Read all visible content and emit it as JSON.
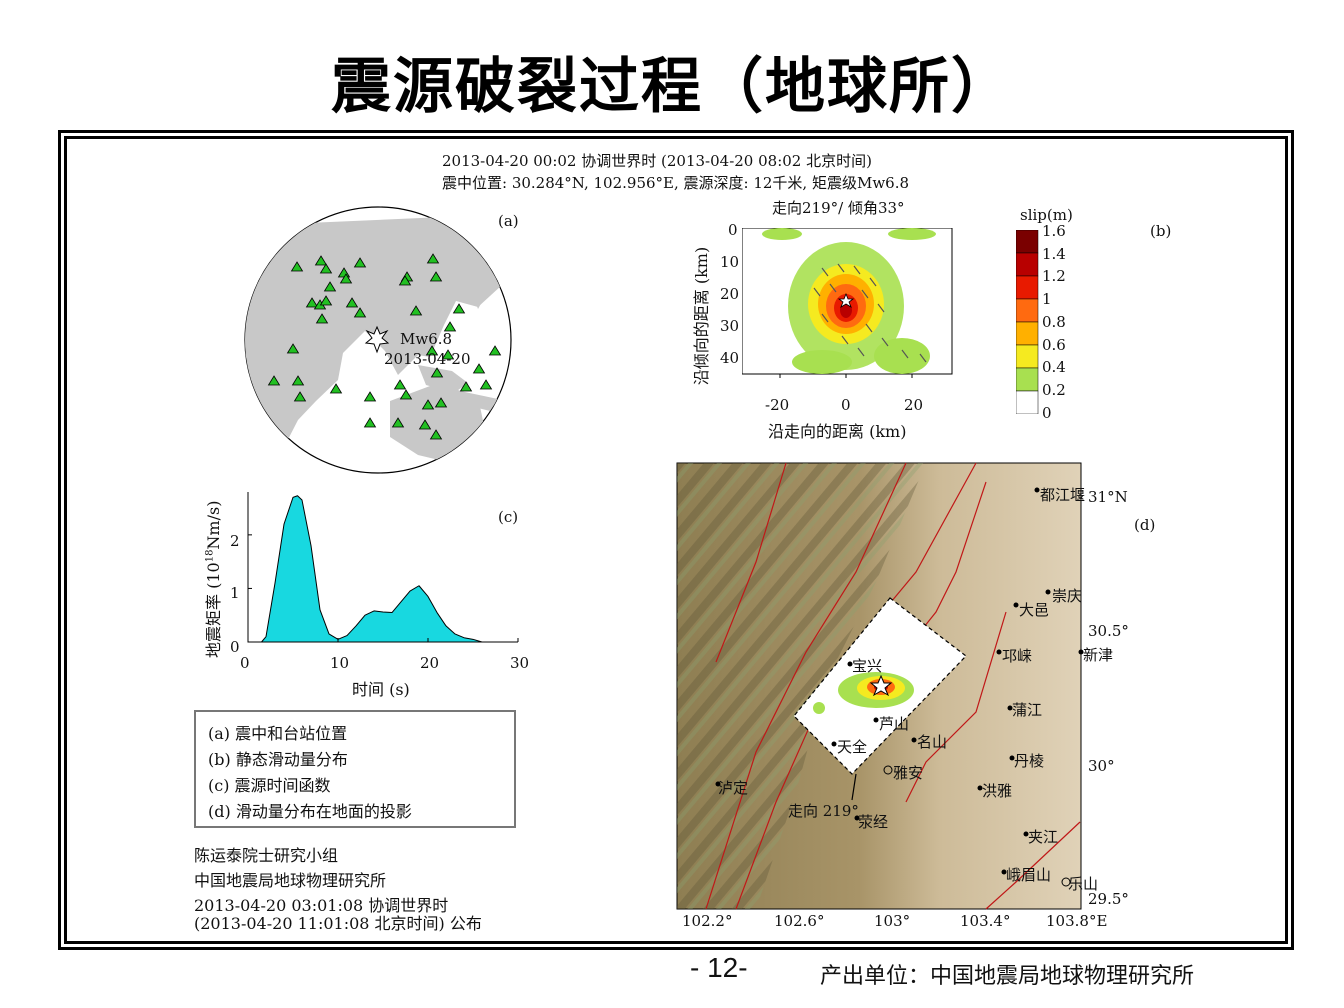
{
  "slide": {
    "title": "震源破裂过程（地球所）",
    "page_number": "- 12-",
    "producer": "产出单位：中国地震局地球物理研究所"
  },
  "figure": {
    "header_line1": "2013-04-20 00:02 协调世界时 (2013-04-20 08:02 北京时间)",
    "header_line2": "震中位置: 30.284°N, 102.956°E, 震源深度: 12千米, 矩震级Mw6.8",
    "panel_a": {
      "label": "(a)",
      "event_mag": "Mw6.8",
      "event_date": "2013-04-20",
      "colors": {
        "land": "#c8c8c8",
        "ocean": "#ffffff",
        "station": "#22c022"
      }
    },
    "panel_b": {
      "label": "(b)",
      "subtitle": "走向219°/ 倾角33°",
      "xlabel": "沿走向的距离 (km)",
      "ylabel": "沿倾向的距离 (km)",
      "xticks": [
        "-20",
        "0",
        "20"
      ],
      "yticks": [
        "0",
        "10",
        "20",
        "30",
        "40"
      ],
      "colorbar_title": "slip(m)",
      "colorbar_ticks": [
        "1.6",
        "1.4",
        "1.2",
        "1",
        "0.8",
        "0.6",
        "0.4",
        "0.2",
        "0"
      ],
      "colorbar_colors": [
        "#7a0000",
        "#b80000",
        "#e81a00",
        "#ff6a10",
        "#ffb000",
        "#f5ea20",
        "#a8e050",
        "#6cd870",
        "#ffffff"
      ]
    },
    "panel_c": {
      "label": "(c)",
      "ylabel": "地震矩率 (10",
      "ylabel_sup": "18",
      "ylabel_tail": "Nm/s)",
      "xlabel": "时间 (s)",
      "xticks": [
        "0",
        "10",
        "20",
        "30"
      ],
      "yticks": [
        "0",
        "1",
        "2"
      ],
      "fill_color": "#18d8e0"
    },
    "panel_d": {
      "label": "(d)",
      "cities": [
        "都江堰",
        "崇庆",
        "大邑",
        "邛崃",
        "新津",
        "宝兴",
        "芦山",
        "名山",
        "天全",
        "雅安",
        "蒲江",
        "丹棱",
        "洪雅",
        "泸定",
        "荥经",
        "夹江",
        "峨眉山",
        "乐山"
      ],
      "lat_labels": [
        "31°N",
        "30.5°",
        "30°",
        "29.5°"
      ],
      "lon_labels": [
        "102.2°",
        "102.6°",
        "103°",
        "103.4°",
        "103.8°E"
      ],
      "strike_label": "走向 219°"
    },
    "legend": [
      "(a) 震中和台站位置",
      "(b) 静态滑动量分布",
      "(c) 震源时间函数",
      "(d) 滑动量分布在地面的投影"
    ],
    "credit": [
      "陈运泰院士研究小组",
      "中国地震局地球物理研究所",
      "2013-04-20 03:01:08 协调世界时",
      "(2013-04-20 11:01:08 北京时间)  公布"
    ]
  },
  "chart_data": [
    {
      "type": "area",
      "panel": "(c)",
      "xlabel": "时间 (s)",
      "ylabel": "地震矩率 (10^18 Nm/s)",
      "xlim": [
        0,
        30
      ],
      "ylim": [
        0,
        2.8
      ],
      "x": [
        1.5,
        2,
        3,
        4,
        5,
        5.5,
        6,
        7,
        8,
        9,
        10,
        11,
        12,
        13,
        14,
        15,
        16,
        17,
        18,
        19,
        20,
        21,
        22,
        23,
        24,
        25,
        26
      ],
      "y": [
        0,
        0.1,
        1.1,
        2.2,
        2.7,
        2.73,
        2.65,
        1.8,
        0.6,
        0.15,
        0.05,
        0.12,
        0.3,
        0.5,
        0.58,
        0.56,
        0.55,
        0.75,
        0.95,
        1.05,
        0.85,
        0.55,
        0.3,
        0.15,
        0.08,
        0.05,
        0
      ]
    }
  ]
}
